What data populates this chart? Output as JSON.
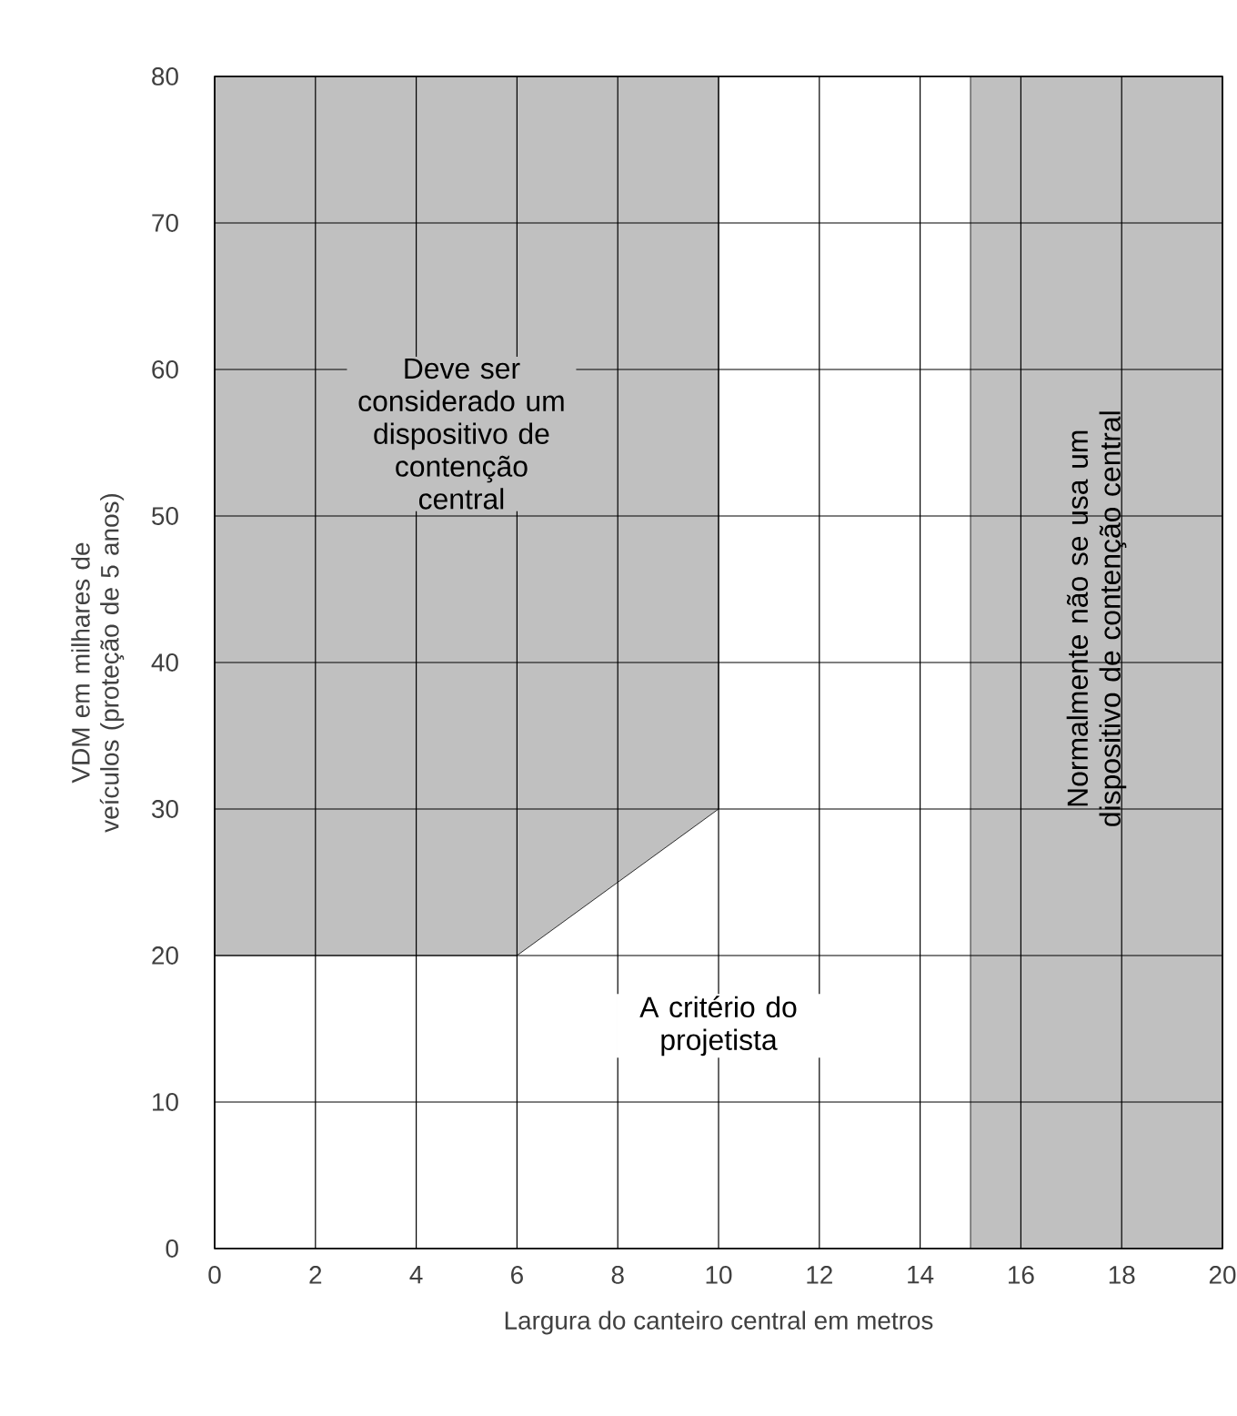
{
  "chart_data": {
    "type": "area",
    "xlabel": "Largura do canteiro central em metros",
    "ylabel": "VDM em milhares de veículos (proteção de 5 anos)",
    "xlim": [
      0,
      20
    ],
    "ylim": [
      0,
      80
    ],
    "xticks": [
      0,
      2,
      4,
      6,
      8,
      10,
      12,
      14,
      16,
      18,
      20
    ],
    "yticks": [
      0,
      10,
      20,
      30,
      40,
      50,
      60,
      70,
      80
    ],
    "grid": true,
    "series": [
      {
        "color": "#c0c0c0",
        "x": [
          0,
          0,
          6,
          10,
          10
        ],
        "values": [
          80,
          20,
          20,
          30,
          80
        ]
      }
    ],
    "bands": [
      {
        "axis": "x",
        "from": 15,
        "to": 20,
        "color": "#c0c0c0",
        "label": "Normalmente não se usa um dispositivo de contenção central"
      }
    ],
    "annotations": [
      "Deve ser considerado um dispositivo de contenção central",
      "A critério do projetista"
    ]
  }
}
